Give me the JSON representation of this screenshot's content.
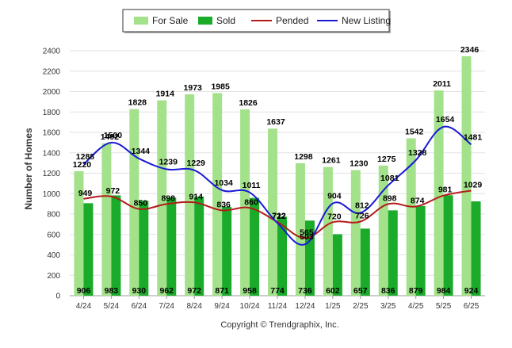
{
  "chart_data": {
    "type": "bar",
    "categories": [
      "4/24",
      "5/24",
      "6/24",
      "7/24",
      "8/24",
      "9/24",
      "10/24",
      "11/24",
      "12/24",
      "1/25",
      "2/25",
      "3/25",
      "4/25",
      "5/25",
      "6/25"
    ],
    "series": [
      {
        "name": "For Sale",
        "type": "bar",
        "color": "#a3e28a",
        "values": [
          1220,
          1492,
          1828,
          1914,
          1973,
          1985,
          1826,
          1637,
          1298,
          1261,
          1230,
          1275,
          1542,
          2011,
          2346
        ]
      },
      {
        "name": "Sold",
        "type": "bar",
        "color": "#1aab2a",
        "values": [
          906,
          983,
          930,
          962,
          972,
          871,
          958,
          774,
          736,
          602,
          657,
          836,
          879,
          984,
          924
        ]
      },
      {
        "name": "Pended",
        "type": "line",
        "color": "#b31b1b",
        "values": [
          949,
          972,
          850,
          898,
          914,
          836,
          860,
          722,
          565,
          720,
          726,
          898,
          874,
          981,
          1029
        ]
      },
      {
        "name": "New Listing",
        "type": "line",
        "color": "#1a1ad6",
        "values": [
          1288,
          1500,
          1344,
          1239,
          1229,
          1034,
          1011,
          712,
          503,
          904,
          812,
          1081,
          1328,
          1654,
          1481
        ]
      }
    ],
    "ylabel": "Number of Homes",
    "xlabel": "",
    "ylim": [
      0,
      2400
    ],
    "yticks": [
      0,
      200,
      400,
      600,
      800,
      1000,
      1200,
      1400,
      1600,
      1800,
      2000,
      2200,
      2400
    ],
    "grid": true,
    "legend": "top-center"
  },
  "footer": {
    "copyright": "Copyright © Trendgraphix, Inc."
  }
}
